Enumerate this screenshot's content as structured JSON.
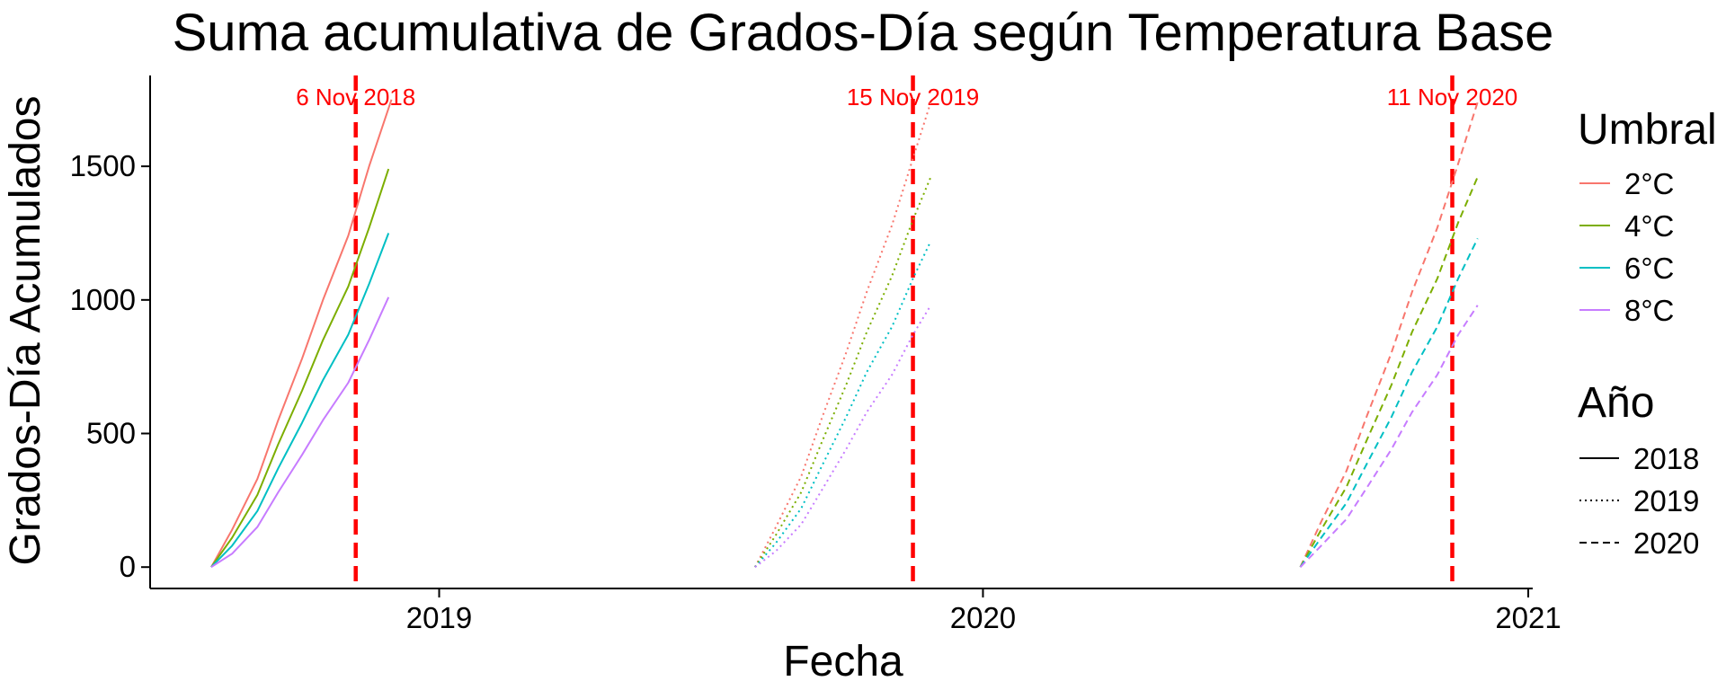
{
  "chart_data": {
    "type": "line",
    "title": "Suma acumulativa de Grados-Día según Temperatura Base",
    "xlabel": "Fecha",
    "ylabel": "Grados-Día Acumulados",
    "xlim": [
      "2018-06-21",
      "2021-01-04"
    ],
    "ylim": [
      -80,
      1840
    ],
    "x_ticks": [
      "2019-01-01",
      "2020-01-01",
      "2021-01-01"
    ],
    "x_tick_labels": [
      "2019",
      "2020",
      "2021"
    ],
    "y_ticks": [
      0,
      500,
      1000,
      1500
    ],
    "y_tick_labels": [
      "0",
      "500",
      "1000",
      "1500"
    ],
    "grid": false,
    "legend_position": "right",
    "legends": [
      {
        "title": "Umbral",
        "entries": [
          {
            "label": "2°C",
            "color": "#F8766D"
          },
          {
            "label": "4°C",
            "color": "#7CAE00"
          },
          {
            "label": "6°C",
            "color": "#00BFC4"
          },
          {
            "label": "8°C",
            "color": "#C77CFF"
          }
        ]
      },
      {
        "title": "Año",
        "entries": [
          {
            "label": "2018",
            "linetype": "solid"
          },
          {
            "label": "2019",
            "linetype": "dotted"
          },
          {
            "label": "2020",
            "linetype": "dashed"
          }
        ]
      }
    ],
    "annotations": [
      {
        "date": "2018-11-06",
        "label": "6 Nov 2018",
        "color": "#ff0000"
      },
      {
        "date": "2019-11-15",
        "label": "15 Nov 2019",
        "color": "#ff0000"
      },
      {
        "date": "2020-11-11",
        "label": "11 Nov 2020",
        "color": "#ff0000"
      }
    ],
    "series": [
      {
        "year": "2018",
        "threshold": "2°C",
        "linetype": "solid",
        "color": "#F8766D",
        "points": [
          [
            "2018-08-01",
            0
          ],
          [
            "2018-08-15",
            140
          ],
          [
            "2018-09-01",
            330
          ],
          [
            "2018-09-15",
            550
          ],
          [
            "2018-10-01",
            780
          ],
          [
            "2018-10-15",
            1000
          ],
          [
            "2018-11-01",
            1240
          ],
          [
            "2018-11-15",
            1500
          ],
          [
            "2018-11-30",
            1750
          ]
        ]
      },
      {
        "year": "2018",
        "threshold": "4°C",
        "linetype": "solid",
        "color": "#7CAE00",
        "points": [
          [
            "2018-08-01",
            0
          ],
          [
            "2018-08-15",
            110
          ],
          [
            "2018-09-01",
            270
          ],
          [
            "2018-09-15",
            460
          ],
          [
            "2018-10-01",
            660
          ],
          [
            "2018-10-15",
            850
          ],
          [
            "2018-11-01",
            1050
          ],
          [
            "2018-11-15",
            1270
          ],
          [
            "2018-11-28",
            1490
          ]
        ]
      },
      {
        "year": "2018",
        "threshold": "6°C",
        "linetype": "solid",
        "color": "#00BFC4",
        "points": [
          [
            "2018-08-01",
            0
          ],
          [
            "2018-08-15",
            80
          ],
          [
            "2018-09-01",
            210
          ],
          [
            "2018-09-15",
            370
          ],
          [
            "2018-10-01",
            540
          ],
          [
            "2018-10-15",
            700
          ],
          [
            "2018-11-01",
            870
          ],
          [
            "2018-11-15",
            1060
          ],
          [
            "2018-11-28",
            1250
          ]
        ]
      },
      {
        "year": "2018",
        "threshold": "8°C",
        "linetype": "solid",
        "color": "#C77CFF",
        "points": [
          [
            "2018-08-01",
            0
          ],
          [
            "2018-08-15",
            50
          ],
          [
            "2018-09-01",
            150
          ],
          [
            "2018-09-15",
            280
          ],
          [
            "2018-10-01",
            420
          ],
          [
            "2018-10-15",
            550
          ],
          [
            "2018-11-01",
            690
          ],
          [
            "2018-11-15",
            850
          ],
          [
            "2018-11-28",
            1010
          ]
        ]
      },
      {
        "year": "2019",
        "threshold": "2°C",
        "linetype": "dotted",
        "color": "#F8766D",
        "points": [
          [
            "2019-08-01",
            0
          ],
          [
            "2019-08-15",
            150
          ],
          [
            "2019-09-01",
            340
          ],
          [
            "2019-09-15",
            560
          ],
          [
            "2019-10-01",
            800
          ],
          [
            "2019-10-15",
            1030
          ],
          [
            "2019-11-01",
            1280
          ],
          [
            "2019-11-15",
            1530
          ],
          [
            "2019-11-27",
            1740
          ]
        ]
      },
      {
        "year": "2019",
        "threshold": "4°C",
        "linetype": "dotted",
        "color": "#7CAE00",
        "points": [
          [
            "2019-08-01",
            0
          ],
          [
            "2019-08-15",
            120
          ],
          [
            "2019-09-01",
            280
          ],
          [
            "2019-09-15",
            470
          ],
          [
            "2019-10-01",
            680
          ],
          [
            "2019-10-15",
            880
          ],
          [
            "2019-11-01",
            1090
          ],
          [
            "2019-11-15",
            1300
          ],
          [
            "2019-11-27",
            1460
          ]
        ]
      },
      {
        "year": "2019",
        "threshold": "6°C",
        "linetype": "dotted",
        "color": "#00BFC4",
        "points": [
          [
            "2019-08-01",
            0
          ],
          [
            "2019-08-15",
            90
          ],
          [
            "2019-09-01",
            220
          ],
          [
            "2019-09-15",
            380
          ],
          [
            "2019-10-01",
            560
          ],
          [
            "2019-10-15",
            730
          ],
          [
            "2019-11-01",
            900
          ],
          [
            "2019-11-15",
            1080
          ],
          [
            "2019-11-27",
            1220
          ]
        ]
      },
      {
        "year": "2019",
        "threshold": "8°C",
        "linetype": "dotted",
        "color": "#C77CFF",
        "points": [
          [
            "2019-08-01",
            0
          ],
          [
            "2019-08-15",
            60
          ],
          [
            "2019-09-01",
            160
          ],
          [
            "2019-09-15",
            290
          ],
          [
            "2019-10-01",
            440
          ],
          [
            "2019-10-15",
            580
          ],
          [
            "2019-11-01",
            720
          ],
          [
            "2019-11-15",
            870
          ],
          [
            "2019-11-27",
            980
          ]
        ]
      },
      {
        "year": "2020",
        "threshold": "2°C",
        "linetype": "dashed",
        "color": "#F8766D",
        "points": [
          [
            "2020-08-01",
            0
          ],
          [
            "2020-08-15",
            170
          ],
          [
            "2020-09-01",
            360
          ],
          [
            "2020-09-15",
            570
          ],
          [
            "2020-10-01",
            800
          ],
          [
            "2020-10-15",
            1030
          ],
          [
            "2020-11-01",
            1270
          ],
          [
            "2020-11-15",
            1510
          ],
          [
            "2020-11-28",
            1740
          ]
        ]
      },
      {
        "year": "2020",
        "threshold": "4°C",
        "linetype": "dashed",
        "color": "#7CAE00",
        "points": [
          [
            "2020-08-01",
            0
          ],
          [
            "2020-08-15",
            140
          ],
          [
            "2020-09-01",
            300
          ],
          [
            "2020-09-15",
            480
          ],
          [
            "2020-10-01",
            680
          ],
          [
            "2020-10-15",
            880
          ],
          [
            "2020-11-01",
            1080
          ],
          [
            "2020-11-15",
            1290
          ],
          [
            "2020-11-28",
            1460
          ]
        ]
      },
      {
        "year": "2020",
        "threshold": "6°C",
        "linetype": "dashed",
        "color": "#00BFC4",
        "points": [
          [
            "2020-08-01",
            0
          ],
          [
            "2020-08-15",
            110
          ],
          [
            "2020-09-01",
            240
          ],
          [
            "2020-09-15",
            390
          ],
          [
            "2020-10-01",
            560
          ],
          [
            "2020-10-15",
            730
          ],
          [
            "2020-11-01",
            900
          ],
          [
            "2020-11-15",
            1080
          ],
          [
            "2020-11-28",
            1230
          ]
        ]
      },
      {
        "year": "2020",
        "threshold": "8°C",
        "linetype": "dashed",
        "color": "#C77CFF",
        "points": [
          [
            "2020-08-01",
            0
          ],
          [
            "2020-08-15",
            80
          ],
          [
            "2020-09-01",
            180
          ],
          [
            "2020-09-15",
            300
          ],
          [
            "2020-10-01",
            440
          ],
          [
            "2020-10-15",
            580
          ],
          [
            "2020-11-01",
            720
          ],
          [
            "2020-11-15",
            870
          ],
          [
            "2020-11-28",
            980
          ]
        ]
      }
    ]
  }
}
